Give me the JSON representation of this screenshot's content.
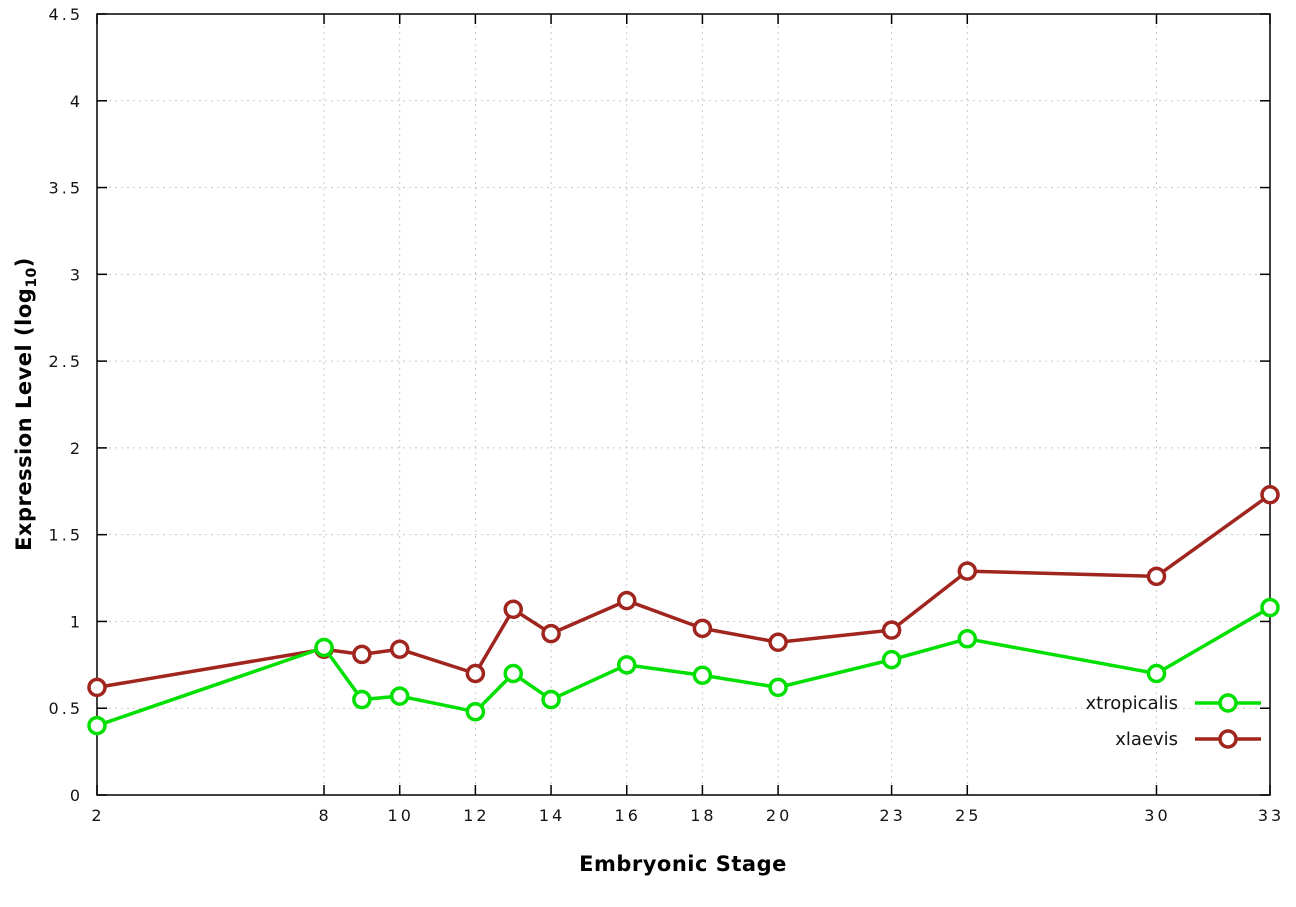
{
  "chart_data": {
    "type": "line",
    "title": "",
    "xlabel": "Embryonic Stage",
    "ylabel": {
      "prefix": "Expression Level (log",
      "sub": "10",
      "suffix": ")"
    },
    "x": [
      2,
      8,
      9,
      10,
      12,
      13,
      14,
      16,
      18,
      20,
      23,
      25,
      30,
      33
    ],
    "xticks": [
      2,
      8,
      10,
      12,
      14,
      16,
      18,
      20,
      23,
      25,
      30,
      33
    ],
    "yticks": [
      0,
      0.5,
      1,
      1.5,
      2,
      2.5,
      3,
      3.5,
      4,
      4.5
    ],
    "xlim": [
      2,
      33
    ],
    "ylim": [
      0,
      4.5
    ],
    "grid": true,
    "legend_position": "inside-bottom-right",
    "colors": {
      "grid": "#c8c8c8",
      "border": "#000000",
      "tick_text": "#141414"
    },
    "series": [
      {
        "name": "xtropicalis",
        "color": "#00e000",
        "values": [
          0.4,
          0.85,
          0.55,
          0.57,
          0.48,
          0.7,
          0.55,
          0.75,
          0.69,
          0.62,
          0.78,
          0.9,
          0.7,
          1.08
        ]
      },
      {
        "name": "xlaevis",
        "color": "#a0251e",
        "values": [
          0.62,
          0.84,
          0.81,
          0.84,
          0.7,
          1.07,
          0.93,
          1.12,
          0.96,
          0.88,
          0.95,
          1.29,
          1.26,
          1.73
        ]
      }
    ]
  }
}
